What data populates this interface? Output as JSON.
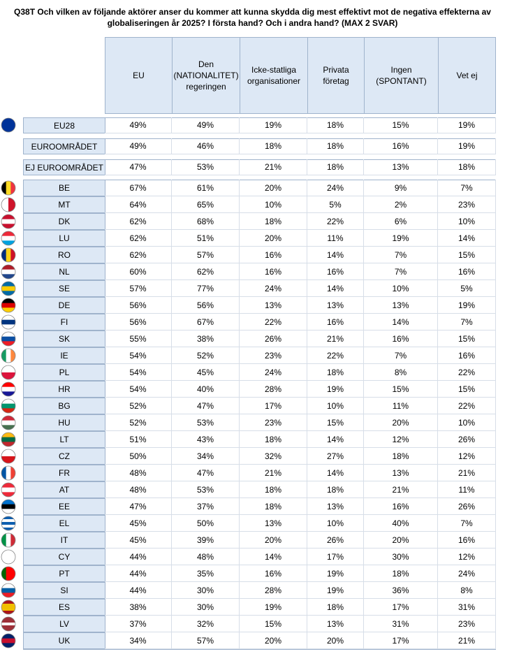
{
  "title": "Q38T Och vilken av följande aktörer anser du kommer att kunna skydda dig mest effektivt mot de negativa effekterna av globaliseringen år 2025? I första hand? Och i andra hand? (MAX 2 SVAR)",
  "table": {
    "headers": [
      "EU",
      "Den (NATIONALITET) regeringen",
      "Icke-statliga organisationer",
      "Privata företag",
      "Ingen (SPONTANT)",
      "Vet ej"
    ],
    "aggregates": [
      {
        "label": "EU28",
        "values": [
          "49%",
          "49%",
          "19%",
          "18%",
          "15%",
          "19%"
        ]
      },
      {
        "label": "EUROOMRÅDET",
        "values": [
          "49%",
          "46%",
          "18%",
          "18%",
          "16%",
          "19%"
        ]
      },
      {
        "label": "EJ EUROOMRÅDET",
        "values": [
          "47%",
          "53%",
          "21%",
          "18%",
          "13%",
          "18%"
        ]
      }
    ],
    "countries": [
      {
        "label": "BE",
        "values": [
          "67%",
          "61%",
          "20%",
          "24%",
          "9%",
          "7%"
        ]
      },
      {
        "label": "MT",
        "values": [
          "64%",
          "65%",
          "10%",
          "5%",
          "2%",
          "23%"
        ]
      },
      {
        "label": "DK",
        "values": [
          "62%",
          "68%",
          "18%",
          "22%",
          "6%",
          "10%"
        ]
      },
      {
        "label": "LU",
        "values": [
          "62%",
          "51%",
          "20%",
          "11%",
          "19%",
          "14%"
        ]
      },
      {
        "label": "RO",
        "values": [
          "62%",
          "57%",
          "16%",
          "14%",
          "7%",
          "15%"
        ]
      },
      {
        "label": "NL",
        "values": [
          "60%",
          "62%",
          "16%",
          "16%",
          "7%",
          "16%"
        ]
      },
      {
        "label": "SE",
        "values": [
          "57%",
          "77%",
          "24%",
          "14%",
          "10%",
          "5%"
        ]
      },
      {
        "label": "DE",
        "values": [
          "56%",
          "56%",
          "13%",
          "13%",
          "13%",
          "19%"
        ]
      },
      {
        "label": "FI",
        "values": [
          "56%",
          "67%",
          "22%",
          "16%",
          "14%",
          "7%"
        ]
      },
      {
        "label": "SK",
        "values": [
          "55%",
          "38%",
          "26%",
          "21%",
          "16%",
          "15%"
        ]
      },
      {
        "label": "IE",
        "values": [
          "54%",
          "52%",
          "23%",
          "22%",
          "7%",
          "16%"
        ]
      },
      {
        "label": "PL",
        "values": [
          "54%",
          "45%",
          "24%",
          "18%",
          "8%",
          "22%"
        ]
      },
      {
        "label": "HR",
        "values": [
          "54%",
          "40%",
          "28%",
          "19%",
          "15%",
          "15%"
        ]
      },
      {
        "label": "BG",
        "values": [
          "52%",
          "47%",
          "17%",
          "10%",
          "11%",
          "22%"
        ]
      },
      {
        "label": "HU",
        "values": [
          "52%",
          "53%",
          "23%",
          "15%",
          "20%",
          "10%"
        ]
      },
      {
        "label": "LT",
        "values": [
          "51%",
          "43%",
          "18%",
          "14%",
          "12%",
          "26%"
        ]
      },
      {
        "label": "CZ",
        "values": [
          "50%",
          "34%",
          "32%",
          "27%",
          "18%",
          "12%"
        ]
      },
      {
        "label": "FR",
        "values": [
          "48%",
          "47%",
          "21%",
          "14%",
          "13%",
          "21%"
        ]
      },
      {
        "label": "AT",
        "values": [
          "48%",
          "53%",
          "18%",
          "18%",
          "21%",
          "11%"
        ]
      },
      {
        "label": "EE",
        "values": [
          "47%",
          "37%",
          "18%",
          "13%",
          "16%",
          "26%"
        ]
      },
      {
        "label": "EL",
        "values": [
          "45%",
          "50%",
          "13%",
          "10%",
          "40%",
          "7%"
        ]
      },
      {
        "label": "IT",
        "values": [
          "45%",
          "39%",
          "20%",
          "26%",
          "20%",
          "16%"
        ]
      },
      {
        "label": "CY",
        "values": [
          "44%",
          "48%",
          "14%",
          "17%",
          "30%",
          "12%"
        ]
      },
      {
        "label": "PT",
        "values": [
          "44%",
          "35%",
          "16%",
          "19%",
          "18%",
          "24%"
        ]
      },
      {
        "label": "SI",
        "values": [
          "44%",
          "30%",
          "28%",
          "19%",
          "36%",
          "8%"
        ]
      },
      {
        "label": "ES",
        "values": [
          "38%",
          "30%",
          "19%",
          "18%",
          "17%",
          "31%"
        ]
      },
      {
        "label": "LV",
        "values": [
          "37%",
          "32%",
          "15%",
          "13%",
          "31%",
          "23%"
        ]
      },
      {
        "label": "UK",
        "values": [
          "34%",
          "57%",
          "20%",
          "20%",
          "17%",
          "21%"
        ]
      }
    ]
  }
}
